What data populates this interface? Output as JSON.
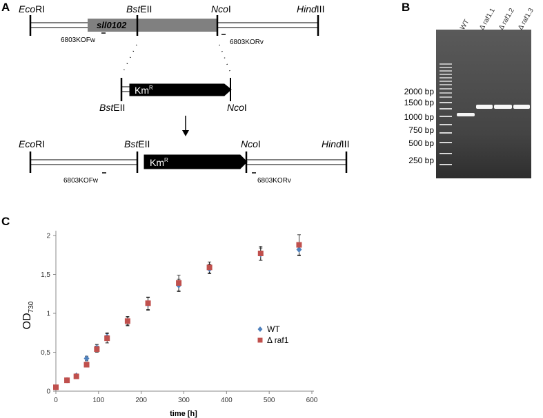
{
  "panel_a": {
    "label": "A",
    "top": {
      "ecori": [
        "Eco",
        "RI"
      ],
      "bsteii": [
        "Bst",
        "EII"
      ],
      "ncoi": [
        "Nco",
        "I"
      ],
      "hindiii": [
        "Hind",
        "III"
      ],
      "gene": "sll0102",
      "primer_fw": "6803KOFw",
      "primer_rv": "6803KORv"
    },
    "cassette": {
      "marker": [
        "Km",
        "R"
      ],
      "bsteii": [
        "Bst",
        "EII"
      ],
      "ncoi": [
        "Nco",
        "I"
      ]
    },
    "bottom": {
      "ecori": [
        "Eco",
        "RI"
      ],
      "bsteii": [
        "Bst",
        "EII"
      ],
      "ncoi": [
        "Nco",
        "I"
      ],
      "hindiii": [
        "Hind",
        "III"
      ],
      "marker": [
        "Km",
        "R"
      ],
      "primer_fw": "6803KOFw",
      "primer_rv": "6803KORv"
    }
  },
  "panel_b": {
    "label": "B",
    "lanes": [
      "WT",
      "Δ raf1.1",
      "Δ raf1.2",
      "Δ raf1.3"
    ],
    "ladder": [
      "2000 bp",
      "1500 bp",
      "1000 bp",
      "750 bp",
      "500 bp",
      "250 bp"
    ]
  },
  "chart_data": {
    "type": "scatter",
    "panel_label": "C",
    "xlabel": "time [h]",
    "ylabel": [
      "OD",
      "730"
    ],
    "x": [
      0,
      26,
      48,
      72,
      96,
      120,
      168,
      216,
      288,
      360,
      480,
      570
    ],
    "series": [
      {
        "name": "WT",
        "color": "#4f81bd",
        "marker": "diamond",
        "values": [
          0.05,
          0.14,
          0.2,
          0.42,
          0.56,
          0.7,
          0.9,
          1.12,
          1.36,
          1.57,
          1.76,
          1.82
        ],
        "errors": [
          0.01,
          0.02,
          0.02,
          0.03,
          0.04,
          0.05,
          0.05,
          0.08,
          0.08,
          0.06,
          0.08,
          0.08
        ]
      },
      {
        "name": "Δ raf1",
        "color": "#c0504d",
        "marker": "square",
        "values": [
          0.05,
          0.14,
          0.19,
          0.34,
          0.54,
          0.68,
          0.9,
          1.13,
          1.39,
          1.59,
          1.77,
          1.88
        ],
        "errors": [
          0.01,
          0.02,
          0.02,
          0.03,
          0.04,
          0.06,
          0.06,
          0.08,
          0.1,
          0.07,
          0.09,
          0.13
        ]
      }
    ],
    "xlim": [
      0,
      600
    ],
    "ylim": [
      0,
      2
    ],
    "xticks": [
      0,
      100,
      200,
      300,
      400,
      500,
      600
    ],
    "yticks": [
      0,
      {
        "value": 0.5,
        "label": "0,5"
      },
      1,
      {
        "value": 1.5,
        "label": "1,5"
      },
      2
    ],
    "grid": false
  }
}
